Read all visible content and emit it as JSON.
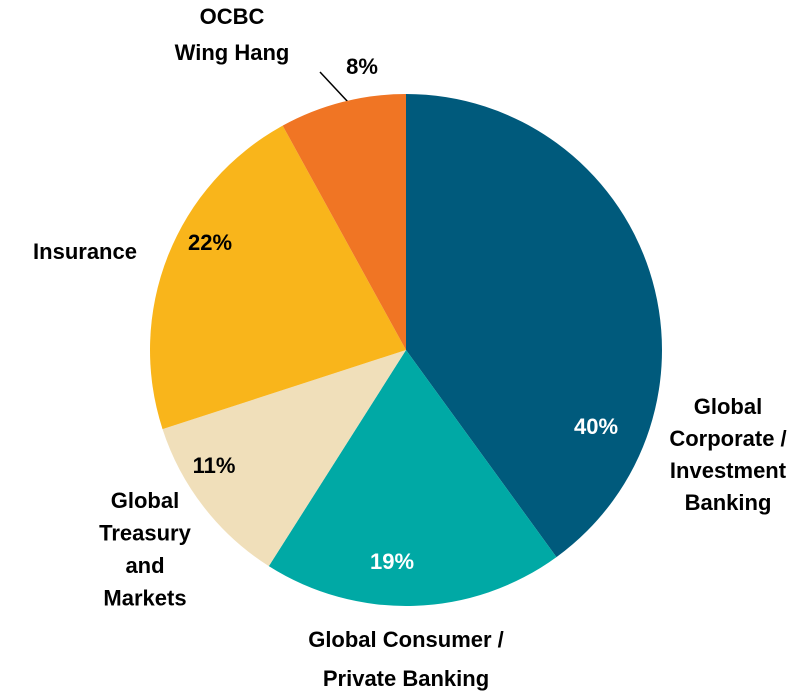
{
  "chart_data": {
    "type": "pie",
    "categories": [
      "Global\nCorporate /\nInvestment\nBanking",
      "Global Consumer /\nPrivate Banking",
      "Global\nTreasury\nand\nMarkets",
      "Insurance",
      "OCBC\nWing Hang"
    ],
    "values": [
      40,
      19,
      11,
      22,
      8
    ],
    "value_labels": [
      "40%",
      "19%",
      "11%",
      "22%",
      "8%"
    ],
    "colors": [
      "#005a7c",
      "#00a9a5",
      "#f0dfba",
      "#f9b51b",
      "#f07524"
    ]
  }
}
